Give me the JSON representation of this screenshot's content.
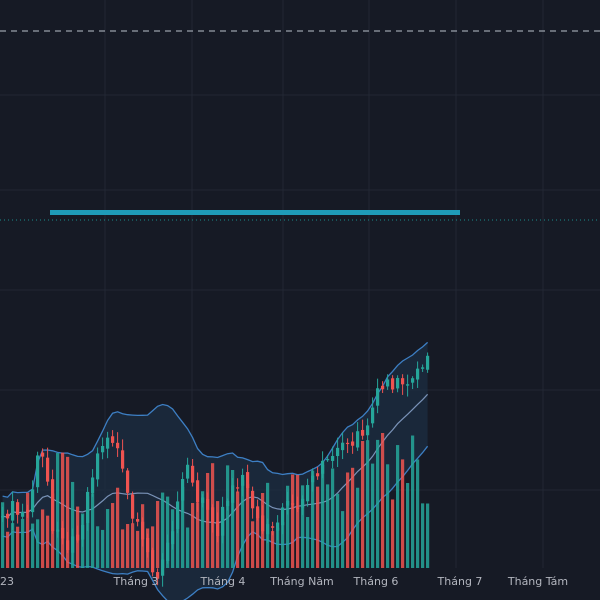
{
  "chart_data": {
    "type": "candlestick",
    "title": "",
    "xlabel": "",
    "ylabel": "",
    "x_ticks": [
      "23",
      "Tháng 3",
      "Tháng 4",
      "Tháng Năm",
      "Tháng 6",
      "Tháng 7",
      "Tháng Tám"
    ],
    "y_range": [
      0,
      1000
    ],
    "grid": true,
    "overlays": [
      "bollinger-bands",
      "horizontal-resistance-line",
      "dashed-reference-line"
    ],
    "colors": {
      "background": "#161a25",
      "grid": "#222733",
      "up": "#26a69a",
      "down": "#ef5350",
      "band_line": "#3d7fc4",
      "band_fill": "#1c2d42",
      "resistance_line": "#1f9bb8",
      "dotted_line": "#1a8d8d",
      "dashed_line": "#9aa0ab",
      "axis_text": "#b2b5be"
    },
    "price": {
      "segments": [
        [
          0,
          520
        ],
        [
          5,
          505
        ],
        [
          10,
          515
        ],
        [
          14,
          520
        ],
        [
          18,
          495
        ],
        [
          24,
          445
        ],
        [
          28,
          480
        ],
        [
          32,
          530
        ],
        [
          38,
          545
        ],
        [
          42,
          545
        ],
        [
          50,
          525
        ],
        [
          58,
          460
        ],
        [
          65,
          430
        ],
        [
          72,
          448
        ],
        [
          78,
          500
        ],
        [
          85,
          520
        ],
        [
          90,
          545
        ],
        [
          95,
          575
        ],
        [
          102,
          560
        ],
        [
          110,
          505
        ],
        [
          115,
          470
        ],
        [
          120,
          485
        ],
        [
          128,
          515
        ],
        [
          135,
          530
        ],
        [
          140,
          500
        ],
        [
          146,
          480
        ],
        [
          152,
          485
        ],
        [
          158,
          520
        ],
        [
          165,
          530
        ],
        [
          172,
          525
        ],
        [
          178,
          510
        ],
        [
          185,
          505
        ],
        [
          192,
          482
        ],
        [
          198,
          470
        ],
        [
          204,
          465
        ],
        [
          210,
          455
        ],
        [
          216,
          448
        ],
        [
          222,
          440
        ],
        [
          228,
          425
        ],
        [
          232,
          408
        ],
        [
          238,
          388
        ],
        [
          244,
          380
        ],
        [
          250,
          385
        ],
        [
          255,
          378
        ],
        [
          260,
          372
        ],
        [
          268,
          362
        ]
      ],
      "volume": [
        [
          0,
          62
        ],
        [
          6,
          48
        ],
        [
          12,
          70
        ],
        [
          18,
          55
        ],
        [
          24,
          68
        ],
        [
          30,
          82
        ],
        [
          36,
          95
        ],
        [
          40,
          105
        ],
        [
          44,
          80
        ],
        [
          50,
          70
        ],
        [
          56,
          62
        ],
        [
          62,
          58
        ],
        [
          68,
          72
        ],
        [
          74,
          60
        ],
        [
          80,
          55
        ],
        [
          86,
          64
        ],
        [
          92,
          50
        ],
        [
          98,
          62
        ],
        [
          104,
          58
        ],
        [
          110,
          66
        ],
        [
          116,
          60
        ],
        [
          122,
          64
        ],
        [
          128,
          76
        ],
        [
          134,
          92
        ],
        [
          140,
          86
        ],
        [
          146,
          80
        ],
        [
          152,
          84
        ],
        [
          158,
          74
        ],
        [
          164,
          70
        ],
        [
          170,
          66
        ],
        [
          176,
          72
        ],
        [
          182,
          80
        ],
        [
          188,
          86
        ],
        [
          194,
          78
        ],
        [
          200,
          82
        ],
        [
          206,
          76
        ],
        [
          212,
          84
        ],
        [
          218,
          88
        ],
        [
          224,
          96
        ],
        [
          230,
          110
        ],
        [
          236,
          118
        ],
        [
          242,
          108
        ],
        [
          248,
          102
        ],
        [
          254,
          114
        ],
        [
          260,
          96
        ],
        [
          266,
          90
        ]
      ]
    }
  },
  "labels": {
    "x_axis": [
      "23",
      "Tháng 3",
      "Tháng 4",
      "Tháng Năm",
      "Tháng 6",
      "Tháng 7",
      "Tháng Tám"
    ]
  }
}
